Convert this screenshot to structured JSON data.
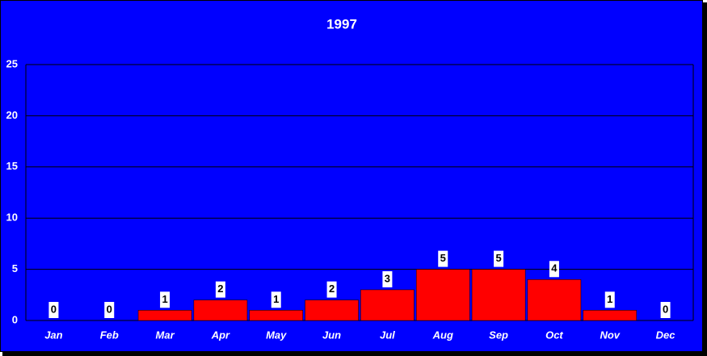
{
  "chart_data": {
    "type": "bar",
    "title": "1997",
    "categories": [
      "Jan",
      "Feb",
      "Mar",
      "Apr",
      "May",
      "Jun",
      "Jul",
      "Aug",
      "Sep",
      "Oct",
      "Nov",
      "Dec"
    ],
    "values": [
      0,
      0,
      1,
      2,
      1,
      2,
      3,
      5,
      5,
      4,
      1,
      0
    ],
    "color": "#ff0000",
    "ylim": [
      0,
      25
    ],
    "yticks": [
      0,
      5,
      10,
      15,
      20,
      25
    ],
    "grid": true
  }
}
